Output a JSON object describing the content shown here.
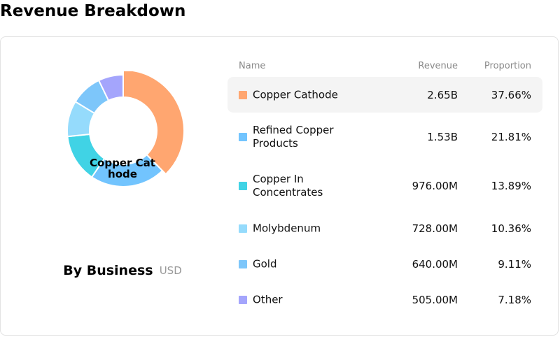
{
  "page": {
    "title": "Revenue Breakdown"
  },
  "summary": {
    "caption_title": "By Business",
    "caption_unit": "USD",
    "center_label": "Copper Cathode"
  },
  "table": {
    "headers": {
      "name": "Name",
      "revenue": "Revenue",
      "proportion": "Proportion"
    },
    "rows": [
      {
        "name": "Copper Cathode",
        "revenue": "2.65B",
        "proportion": "37.66%",
        "color": "#FFA670",
        "highlighted": true
      },
      {
        "name": "Refined Copper Products",
        "revenue": "1.53B",
        "proportion": "21.81%",
        "color": "#72C4FE"
      },
      {
        "name": "Copper In Concentrates",
        "revenue": "976.00M",
        "proportion": "13.89%",
        "color": "#40D3E5"
      },
      {
        "name": "Molybdenum",
        "revenue": "728.00M",
        "proportion": "10.36%",
        "color": "#95DBFC"
      },
      {
        "name": "Gold",
        "revenue": "640.00M",
        "proportion": "9.11%",
        "color": "#7DC6FA"
      },
      {
        "name": "Other",
        "revenue": "505.00M",
        "proportion": "7.18%",
        "color": "#A4A5FC"
      }
    ]
  },
  "chart_data": {
    "type": "pie",
    "donut": true,
    "title": "Revenue Breakdown",
    "categories": [
      "Copper Cathode",
      "Refined Copper Products",
      "Copper In Concentrates",
      "Molybdenum",
      "Gold",
      "Other"
    ],
    "values": [
      37.66,
      21.81,
      13.89,
      10.36,
      9.11,
      7.18
    ],
    "revenue_labels": [
      "2.65B",
      "1.53B",
      "976.00M",
      "728.00M",
      "640.00M",
      "505.00M"
    ],
    "colors": [
      "#FFA670",
      "#72C4FE",
      "#40D3E5",
      "#95DBFC",
      "#7DC6FA",
      "#A4A5FC"
    ],
    "highlighted_index": 0,
    "unit": "USD"
  }
}
